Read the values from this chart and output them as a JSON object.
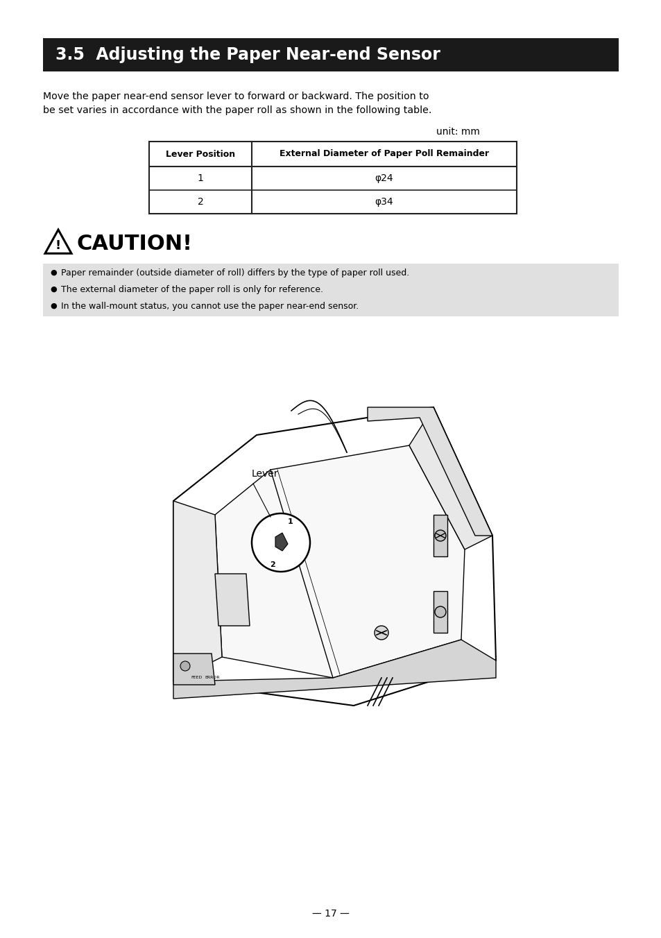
{
  "title": "3.5  Adjusting the Paper Near-end Sensor",
  "title_bg": "#1a1a1a",
  "title_fg": "#ffffff",
  "body_text_line1": "Move the paper near-end sensor lever to forward or backward. The position to",
  "body_text_line2": "be set varies in accordance with the paper roll as shown in the following table.",
  "unit_label": "unit: mm",
  "table_header": [
    "Lever Position",
    "External Diameter of Paper Poll Remainder"
  ],
  "table_rows": [
    [
      "1",
      "φ24"
    ],
    [
      "2",
      "φ34"
    ]
  ],
  "caution_title": "CAUTION!",
  "caution_items": [
    "Paper remainder (outside diameter of roll) differs by the type of paper roll used.",
    "The external diameter of the paper roll is only for reference.",
    "In the wall-mount status, you cannot use the paper near-end sensor."
  ],
  "caution_bg": "#e0e0e0",
  "page_number": "— 17 —",
  "bg_color": "#ffffff",
  "text_color": "#000000",
  "lever_label": "Lever",
  "fig_width": 9.54,
  "fig_height": 13.52
}
